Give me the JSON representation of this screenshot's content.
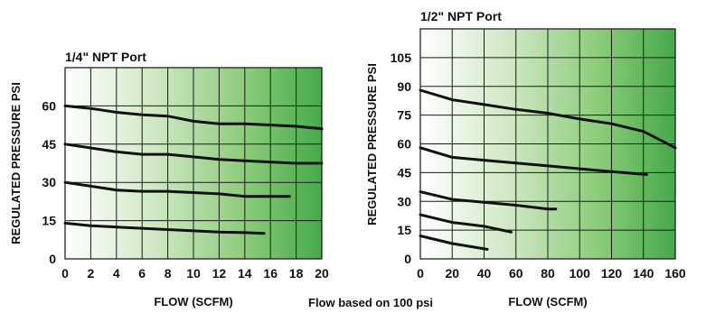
{
  "footnote": "Flow based on 100 psi",
  "chart_data": [
    {
      "type": "line",
      "title": "1/4\" NPT Port",
      "xlabel": "FLOW (SCFM)",
      "ylabel": "REGULATED PRESSURE PSI",
      "xlim": [
        0,
        20
      ],
      "ylim": [
        0,
        75
      ],
      "xticks": [
        0,
        2,
        4,
        6,
        8,
        10,
        12,
        14,
        16,
        18,
        20
      ],
      "yticks": [
        0,
        15,
        30,
        45,
        60
      ],
      "grid": true,
      "background": "white-to-green horizontal gradient",
      "series": [
        {
          "x": [
            0,
            2,
            4,
            6,
            8,
            10,
            12,
            14,
            16,
            18,
            20
          ],
          "y": [
            60,
            59,
            57.5,
            56.5,
            56,
            54,
            53,
            53,
            52.5,
            52,
            51
          ]
        },
        {
          "x": [
            0,
            2,
            4,
            6,
            8,
            10,
            12,
            14,
            16,
            18,
            20
          ],
          "y": [
            45,
            43.5,
            42,
            41,
            41,
            40,
            39,
            38.5,
            38,
            37.5,
            37.5
          ]
        },
        {
          "x": [
            0,
            2,
            4,
            6,
            8,
            10,
            12,
            14,
            16,
            17.5
          ],
          "y": [
            30,
            28.5,
            27,
            26.5,
            26.5,
            26,
            25.5,
            24.5,
            24.5,
            24.5
          ]
        },
        {
          "x": [
            0,
            2,
            4,
            6,
            8,
            10,
            12,
            14,
            15.5
          ],
          "y": [
            14,
            13,
            12.5,
            12,
            11.5,
            11,
            10.5,
            10.3,
            10
          ]
        }
      ]
    },
    {
      "type": "line",
      "title": "1/2\" NPT Port",
      "xlabel": "FLOW (SCFM)",
      "ylabel": "REGULATED PRESSURE PSI",
      "xlim": [
        0,
        160
      ],
      "ylim": [
        0,
        120
      ],
      "xticks": [
        0,
        20,
        40,
        60,
        80,
        100,
        120,
        140,
        160
      ],
      "yticks": [
        0,
        15,
        30,
        45,
        60,
        75,
        90,
        105
      ],
      "grid": true,
      "background": "white-to-green horizontal gradient",
      "series": [
        {
          "x": [
            0,
            20,
            40,
            60,
            80,
            100,
            120,
            140,
            160
          ],
          "y": [
            88,
            83,
            80.5,
            78,
            76,
            73,
            70.5,
            66.5,
            58
          ]
        },
        {
          "x": [
            0,
            20,
            40,
            60,
            80,
            100,
            120,
            142
          ],
          "y": [
            58,
            53,
            51.5,
            50,
            48.5,
            47,
            45.5,
            44
          ]
        },
        {
          "x": [
            0,
            20,
            40,
            60,
            80,
            85
          ],
          "y": [
            35,
            31,
            29.5,
            28,
            26,
            26
          ]
        },
        {
          "x": [
            0,
            20,
            40,
            57
          ],
          "y": [
            23,
            19,
            17,
            14
          ]
        },
        {
          "x": [
            0,
            20,
            42
          ],
          "y": [
            12,
            8,
            5
          ]
        }
      ]
    }
  ]
}
